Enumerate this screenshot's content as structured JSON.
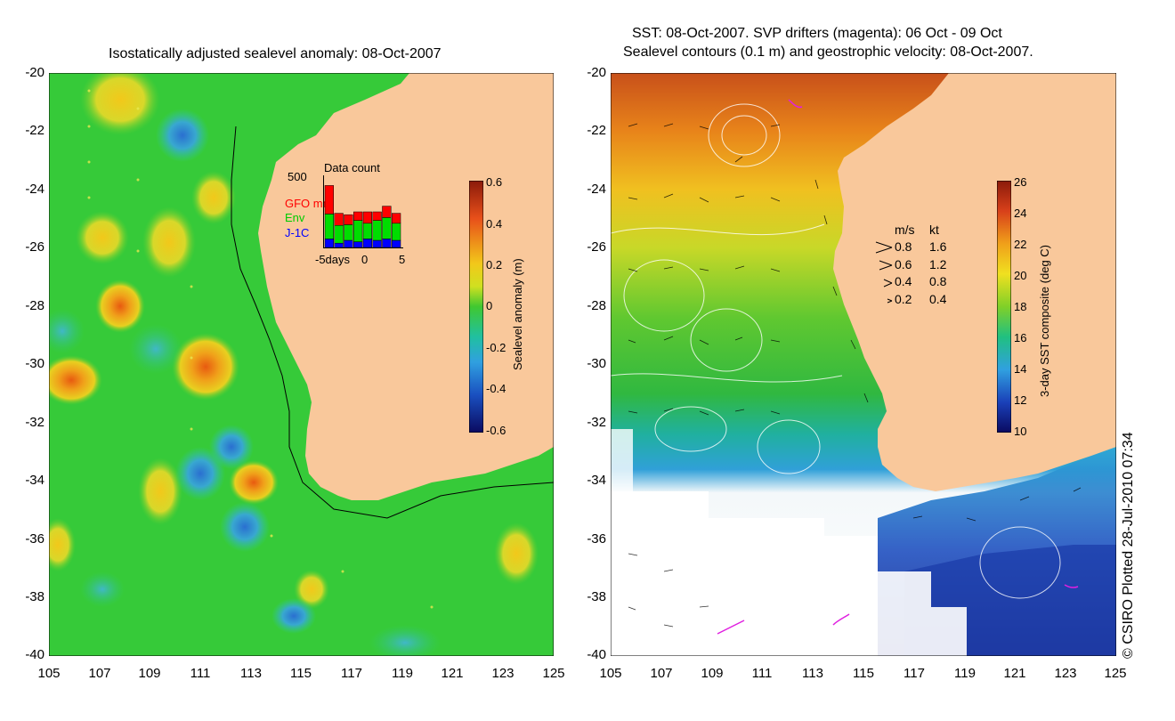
{
  "left_panel": {
    "title": "Isostatically adjusted sealevel anomaly: 08-Oct-2007",
    "y_ticks": [
      "-20",
      "-22",
      "-24",
      "-26",
      "-28",
      "-30",
      "-32",
      "-34",
      "-36",
      "-38",
      "-40"
    ],
    "x_ticks": [
      "105",
      "107",
      "109",
      "111",
      "113",
      "115",
      "117",
      "119",
      "121",
      "123",
      "125"
    ],
    "colorbar": {
      "label": "Sealevel anomaly (m)",
      "ticks": [
        "0.6",
        "0.4",
        "0.2",
        "0",
        "-0.2",
        "-0.4",
        "-0.6"
      ]
    },
    "inset": {
      "title": "Data count",
      "y_max_label": "500",
      "legend": [
        {
          "name": "GFO mm",
          "color": "#ff0000"
        },
        {
          "name": "Env",
          "color": "#00cc00"
        },
        {
          "name": "J-1C",
          "color": "#0000ff"
        }
      ],
      "x_labels": [
        "-5days",
        "0",
        "5"
      ],
      "bars": [
        {
          "blue": 0.12,
          "green": 0.35,
          "red": 0.4
        },
        {
          "blue": 0.06,
          "green": 0.25,
          "red": 0.17
        },
        {
          "blue": 0.1,
          "green": 0.22,
          "red": 0.14
        },
        {
          "blue": 0.08,
          "green": 0.3,
          "red": 0.12
        },
        {
          "blue": 0.12,
          "green": 0.22,
          "red": 0.16
        },
        {
          "blue": 0.1,
          "green": 0.28,
          "red": 0.12
        },
        {
          "blue": 0.12,
          "green": 0.3,
          "red": 0.16
        },
        {
          "blue": 0.1,
          "green": 0.24,
          "red": 0.14
        }
      ]
    }
  },
  "right_panel": {
    "title_line1": "SST: 08-Oct-2007. SVP drifters (magenta): 06 Oct - 09 Oct",
    "title_line2": "Sealevel contours (0.1 m) and geostrophic velocity: 08-Oct-2007.",
    "y_ticks": [
      "-20",
      "-22",
      "-24",
      "-26",
      "-28",
      "-30",
      "-32",
      "-34",
      "-36",
      "-38",
      "-40"
    ],
    "x_ticks": [
      "105",
      "107",
      "109",
      "111",
      "113",
      "115",
      "117",
      "119",
      "121",
      "123",
      "125"
    ],
    "colorbar": {
      "label": "3-day SST composite (deg C)",
      "ticks": [
        "26",
        "24",
        "22",
        "20",
        "18",
        "16",
        "14",
        "12",
        "10"
      ]
    },
    "velocity_legend": {
      "header_ms": "m/s",
      "header_kt": "kt",
      "rows": [
        {
          "ms": "0.8",
          "kt": "1.6"
        },
        {
          "ms": "0.6",
          "kt": "1.2"
        },
        {
          "ms": "0.4",
          "kt": "0.8"
        },
        {
          "ms": "0.2",
          "kt": "0.4"
        }
      ]
    }
  },
  "credit": "© CSIRO Plotted 28-Jul-2010 07:34",
  "colors": {
    "land": "#f9c89b",
    "ocean_green": "#2fc832",
    "anomaly_yellow": "#f2d21c",
    "anomaly_orange": "#f08a1a",
    "anomaly_blue": "#3aa0d8"
  }
}
